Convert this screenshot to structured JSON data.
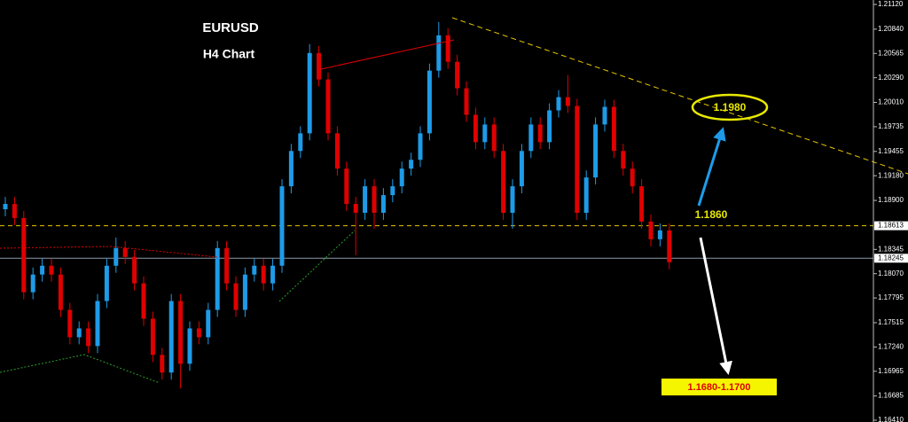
{
  "chart_data": {
    "type": "candlestick",
    "title": "EURUSD",
    "subtitle": "H4 Chart",
    "up_color": "#1e9be8",
    "down_color": "#e00000",
    "ylim": [
      1.1641,
      1.2112
    ],
    "yticks": [
      {
        "value": 1.2112,
        "label": "1.21120"
      },
      {
        "value": 1.2084,
        "label": "1.20840"
      },
      1.20565,
      {
        "value": 1.2029,
        "label": "1.20290"
      },
      {
        "value": 1.2001,
        "label": "1.20010"
      },
      1.19735,
      1.19455,
      {
        "value": 1.1918,
        "label": "1.19180"
      },
      {
        "value": 1.189,
        "label": "1.18900"
      },
      1.18345,
      {
        "value": 1.1807,
        "label": "1.18070"
      },
      1.17795,
      1.17515,
      {
        "value": 1.1724,
        "label": "1.17240"
      },
      1.16965,
      1.16685,
      {
        "value": 1.1641,
        "label": "1.16410"
      }
    ],
    "hlines": [
      {
        "value": 1.18613,
        "color": "#e8c800",
        "dashed": true
      },
      {
        "value": 1.18245,
        "color": "#8a9aa8",
        "dashed": false
      }
    ],
    "annotations": {
      "target_up": "1.1980",
      "level": "1.1860",
      "target_down": "1.1680-1.1700"
    },
    "open": [
      1.188,
      1.1886,
      1.187,
      1.1786,
      1.1806,
      1.1816,
      1.1806,
      1.1766,
      1.1735,
      1.1745,
      1.1725,
      1.1776,
      1.1816,
      1.1836,
      1.1826,
      1.1796,
      1.1756,
      1.1715,
      1.1695,
      1.1776,
      1.1705,
      1.1745,
      1.1735,
      1.1766,
      1.1836,
      1.1796,
      1.1766,
      1.1806,
      1.1816,
      1.1796,
      1.1816,
      1.1906,
      1.1946,
      1.1966,
      1.2057,
      1.2027,
      1.1966,
      1.1926,
      1.1886,
      1.1876,
      1.1906,
      1.1876,
      1.1896,
      1.1906,
      1.1926,
      1.1936,
      1.1966,
      1.2037,
      1.2077,
      1.2047,
      1.2017,
      1.1987,
      1.1956,
      1.1976,
      1.1946,
      1.1876,
      1.1906,
      1.1946,
      1.1976,
      1.1956,
      1.1992,
      1.2007,
      1.1997,
      1.1876,
      1.1916,
      1.1976,
      1.1996,
      1.1946,
      1.1926,
      1.1906,
      1.1866,
      1.1846,
      1.1856
    ],
    "high": [
      1.1894,
      1.1894,
      1.1878,
      1.1814,
      1.1824,
      1.1824,
      1.1814,
      1.1774,
      1.1753,
      1.1753,
      1.1784,
      1.1824,
      1.1848,
      1.1844,
      1.1834,
      1.1804,
      1.1764,
      1.1723,
      1.1784,
      1.1784,
      1.1753,
      1.1753,
      1.1774,
      1.1844,
      1.1844,
      1.1804,
      1.1814,
      1.1824,
      1.1824,
      1.1824,
      1.1914,
      1.1954,
      1.1974,
      1.2067,
      1.2065,
      1.2035,
      1.1974,
      1.1934,
      1.1894,
      1.1914,
      1.1914,
      1.1904,
      1.1914,
      1.1934,
      1.1944,
      1.1974,
      1.2045,
      1.2092,
      1.2085,
      1.2055,
      1.2025,
      1.1995,
      1.1984,
      1.1984,
      1.1954,
      1.1914,
      1.1954,
      1.1984,
      1.1984,
      1.2,
      1.2015,
      1.2032,
      1.2005,
      1.1924,
      1.1984,
      1.2004,
      1.2004,
      1.1954,
      1.1934,
      1.1914,
      1.1874,
      1.1864,
      1.1864
    ],
    "low": [
      1.1872,
      1.1862,
      1.1778,
      1.1778,
      1.1798,
      1.1798,
      1.1758,
      1.1727,
      1.1727,
      1.1717,
      1.1717,
      1.1768,
      1.1808,
      1.1818,
      1.1788,
      1.1748,
      1.1707,
      1.1687,
      1.1687,
      1.1677,
      1.1697,
      1.1727,
      1.1727,
      1.1758,
      1.1788,
      1.1758,
      1.1758,
      1.1798,
      1.1788,
      1.1788,
      1.1808,
      1.1898,
      1.1938,
      1.1958,
      1.2019,
      1.1958,
      1.1918,
      1.1878,
      1.1828,
      1.1868,
      1.1858,
      1.1868,
      1.1888,
      1.1898,
      1.1918,
      1.1928,
      1.1958,
      1.2029,
      1.2039,
      1.2009,
      1.1979,
      1.1948,
      1.1948,
      1.1938,
      1.1868,
      1.1858,
      1.1898,
      1.1938,
      1.1948,
      1.1948,
      1.1984,
      1.1989,
      1.1868,
      1.1868,
      1.1908,
      1.1968,
      1.1938,
      1.1918,
      1.1898,
      1.1858,
      1.1838,
      1.1838,
      1.1812
    ],
    "close": [
      1.1886,
      1.187,
      1.1786,
      1.1806,
      1.1816,
      1.1806,
      1.1766,
      1.1735,
      1.1745,
      1.1725,
      1.1776,
      1.1816,
      1.1836,
      1.1826,
      1.1796,
      1.1756,
      1.1715,
      1.1695,
      1.1776,
      1.1705,
      1.1745,
      1.1735,
      1.1766,
      1.1836,
      1.1796,
      1.1766,
      1.1806,
      1.1816,
      1.1796,
      1.1816,
      1.1906,
      1.1946,
      1.1966,
      1.2057,
      1.2027,
      1.1966,
      1.1926,
      1.1886,
      1.1876,
      1.1906,
      1.1876,
      1.1896,
      1.1906,
      1.1926,
      1.1936,
      1.1966,
      1.2037,
      1.2077,
      1.2047,
      1.2017,
      1.1987,
      1.1956,
      1.1976,
      1.1946,
      1.1876,
      1.1906,
      1.1946,
      1.1976,
      1.1956,
      1.1992,
      1.2007,
      1.1997,
      1.1876,
      1.1916,
      1.1976,
      1.1996,
      1.1946,
      1.1926,
      1.1906,
      1.1866,
      1.1846,
      1.1856,
      1.182
    ]
  }
}
